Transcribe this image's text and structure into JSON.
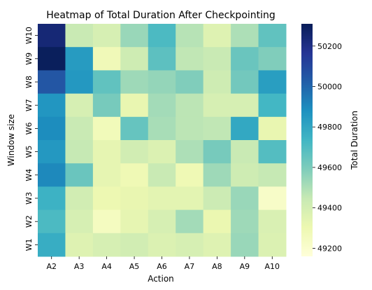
{
  "chart_data": {
    "type": "heatmap",
    "title": "Heatmap of Total Duration After Checkpointing",
    "xlabel": "Action",
    "ylabel": "Window size",
    "x_categories": [
      "A2",
      "A3",
      "A4",
      "A5",
      "A6",
      "A7",
      "A8",
      "A9",
      "A10"
    ],
    "y_categories": [
      "W10",
      "W9",
      "W8",
      "W7",
      "W6",
      "W5",
      "W4",
      "W3",
      "W2",
      "W1"
    ],
    "values": [
      [
        50240,
        49440,
        49390,
        49540,
        49710,
        49480,
        49360,
        49500,
        49660
      ],
      [
        50300,
        49840,
        49280,
        49420,
        49670,
        49460,
        49440,
        49640,
        49590
      ],
      [
        50050,
        49850,
        49660,
        49530,
        49550,
        49590,
        49420,
        49620,
        49830
      ],
      [
        49860,
        49390,
        49610,
        49320,
        49520,
        49470,
        49390,
        49390,
        49730
      ],
      [
        49890,
        49440,
        49270,
        49650,
        49510,
        49470,
        49460,
        49790,
        49320
      ],
      [
        49850,
        49450,
        49330,
        49410,
        49370,
        49500,
        49610,
        49440,
        49690
      ],
      [
        49900,
        49640,
        49330,
        49290,
        49440,
        49290,
        49530,
        49420,
        49450
      ],
      [
        49750,
        49410,
        49300,
        49320,
        49340,
        49340,
        49430,
        49540,
        49220
      ],
      [
        49710,
        49390,
        49250,
        49330,
        49390,
        49520,
        49310,
        49530,
        49380
      ],
      [
        49770,
        49360,
        49390,
        49410,
        49370,
        49390,
        49360,
        49540,
        49370
      ]
    ],
    "colorbar": {
      "label": "Total Duration",
      "ticks": [
        49200,
        49400,
        49600,
        49800,
        50000,
        50200
      ],
      "range": [
        49160,
        50310
      ],
      "colormap": "YlGnBu"
    }
  }
}
